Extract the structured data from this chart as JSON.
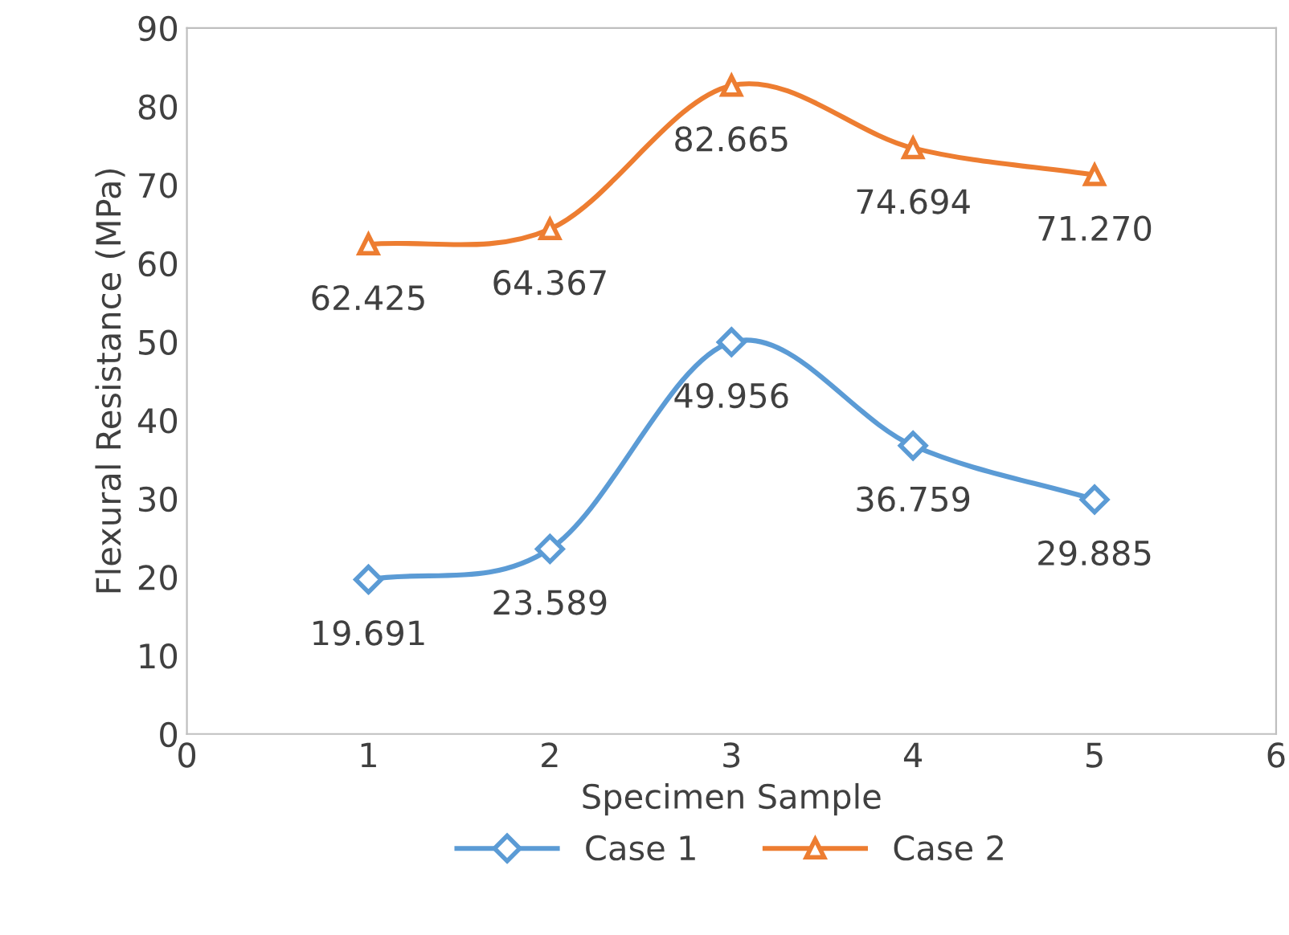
{
  "chart_data": {
    "type": "line",
    "xlabel": "Specimen Sample",
    "ylabel": "Flexural Resistance (MPa)",
    "x": [
      1,
      2,
      3,
      4,
      5
    ],
    "series": [
      {
        "name": "Case 1",
        "color": "#5b9bd5",
        "marker": "diamond",
        "values": [
          19.691,
          23.589,
          49.956,
          36.759,
          29.885
        ],
        "value_labels": [
          "19.691",
          "23.589",
          "49.956",
          "36.759",
          "29.885"
        ]
      },
      {
        "name": "Case 2",
        "color": "#ed7d31",
        "marker": "triangle",
        "values": [
          62.425,
          64.367,
          82.665,
          74.694,
          71.27
        ],
        "value_labels": [
          "62.425",
          "64.367",
          "82.665",
          "74.694",
          "71.270"
        ]
      }
    ],
    "xlim": [
      0,
      6
    ],
    "xticks": [
      0,
      1,
      2,
      3,
      4,
      5,
      6
    ],
    "ylim": [
      0,
      90
    ],
    "yticks": [
      0,
      10,
      20,
      30,
      40,
      50,
      60,
      70,
      80,
      90
    ],
    "grid": false,
    "legend": "bottom",
    "line_style": "solid"
  }
}
